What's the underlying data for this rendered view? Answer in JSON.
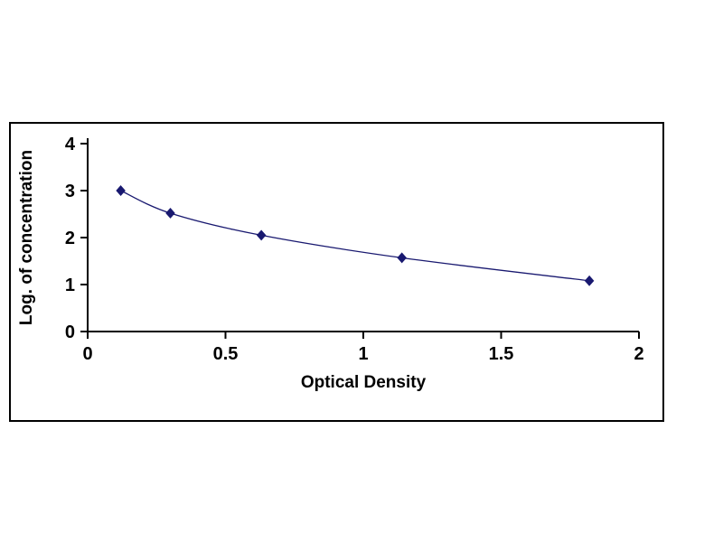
{
  "figure": {
    "frame_border_color": "#000000",
    "background_color": "#ffffff"
  },
  "chart_data": {
    "type": "line",
    "title": "",
    "xlabel": "Optical Density",
    "ylabel": "Log. of concentration",
    "x": [
      0.12,
      0.3,
      0.63,
      1.14,
      1.82
    ],
    "y": [
      3.0,
      2.52,
      2.05,
      1.57,
      1.08
    ],
    "xlim": [
      0,
      2
    ],
    "ylim": [
      0,
      4
    ],
    "xticks": [
      0,
      0.5,
      1,
      1.5,
      2
    ],
    "xtick_labels": [
      "0",
      "0.5",
      "1",
      "1.5",
      "2"
    ],
    "yticks": [
      0,
      1,
      2,
      3,
      4
    ],
    "ytick_labels": [
      "0",
      "1",
      "2",
      "3",
      "4"
    ],
    "grid": false,
    "legend": null,
    "line_color": "#191970",
    "marker_color": "#191970",
    "marker": "diamond",
    "axis_color": "#000000"
  }
}
